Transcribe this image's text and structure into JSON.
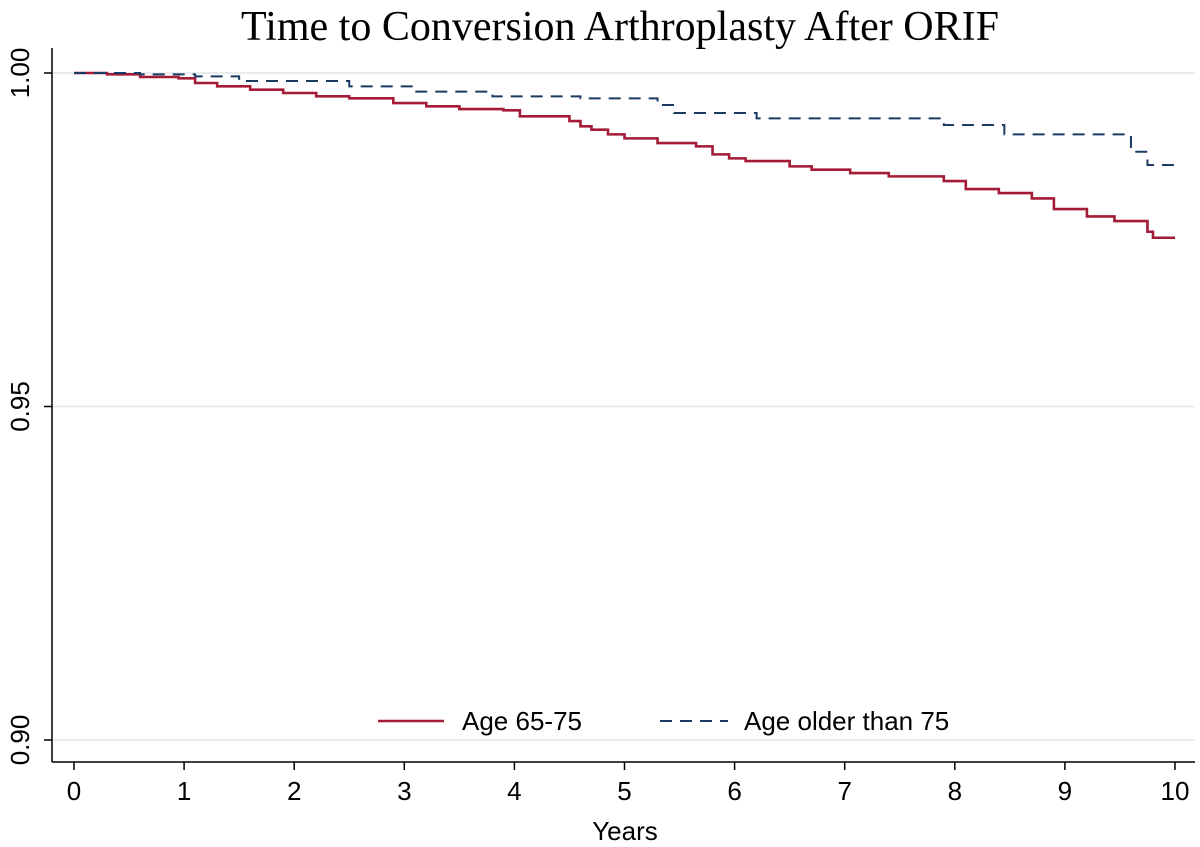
{
  "chart_data": {
    "type": "line",
    "title": "Time to Conversion Arthroplasty After ORIF",
    "xlabel": "Years",
    "ylabel": "",
    "xlim": [
      0,
      10
    ],
    "ylim": [
      0.9,
      1.0
    ],
    "x_ticks": [
      "0",
      "1",
      "2",
      "3",
      "4",
      "5",
      "6",
      "7",
      "8",
      "9",
      "10"
    ],
    "y_ticks": [
      "0.90",
      "0.95",
      "1.00"
    ],
    "grid": "horizontal",
    "legend_position": "bottom-center",
    "series": [
      {
        "name": "Age 65-75",
        "color": "#a31b36",
        "style": "solid",
        "steps": [
          [
            0,
            1.0
          ],
          [
            0.3,
            0.9998
          ],
          [
            0.6,
            0.9994
          ],
          [
            0.95,
            0.9992
          ],
          [
            1.1,
            0.9985
          ],
          [
            1.3,
            0.998
          ],
          [
            1.6,
            0.9975
          ],
          [
            1.9,
            0.997
          ],
          [
            2.2,
            0.9965
          ],
          [
            2.5,
            0.9962
          ],
          [
            2.9,
            0.9955
          ],
          [
            3.2,
            0.995
          ],
          [
            3.5,
            0.9946
          ],
          [
            3.9,
            0.9944
          ],
          [
            4.05,
            0.9935
          ],
          [
            4.5,
            0.9928
          ],
          [
            4.6,
            0.992
          ],
          [
            4.7,
            0.9915
          ],
          [
            4.85,
            0.9908
          ],
          [
            5.0,
            0.9902
          ],
          [
            5.3,
            0.9895
          ],
          [
            5.65,
            0.989
          ],
          [
            5.8,
            0.9878
          ],
          [
            5.95,
            0.9872
          ],
          [
            6.1,
            0.9868
          ],
          [
            6.5,
            0.986
          ],
          [
            6.7,
            0.9855
          ],
          [
            7.05,
            0.985
          ],
          [
            7.4,
            0.9845
          ],
          [
            7.9,
            0.9838
          ],
          [
            8.1,
            0.9826
          ],
          [
            8.4,
            0.982
          ],
          [
            8.7,
            0.9812
          ],
          [
            8.9,
            0.9796
          ],
          [
            9.2,
            0.9785
          ],
          [
            9.45,
            0.9778
          ],
          [
            9.75,
            0.9762
          ],
          [
            9.8,
            0.9753
          ],
          [
            10.0,
            0.9753
          ]
        ]
      },
      {
        "name": "Age older than 75",
        "color": "#1b3b63",
        "style": "dashed",
        "steps": [
          [
            0,
            1.0
          ],
          [
            0.6,
            0.9998
          ],
          [
            1.1,
            0.9995
          ],
          [
            1.5,
            0.9988
          ],
          [
            2.5,
            0.998
          ],
          [
            3.1,
            0.9972
          ],
          [
            3.8,
            0.9965
          ],
          [
            4.6,
            0.9962
          ],
          [
            5.3,
            0.9952
          ],
          [
            5.45,
            0.994
          ],
          [
            6.2,
            0.9932
          ],
          [
            7.9,
            0.9922
          ],
          [
            8.45,
            0.9908
          ],
          [
            9.6,
            0.9882
          ],
          [
            9.75,
            0.9862
          ],
          [
            10.0,
            0.9862
          ]
        ]
      }
    ]
  }
}
